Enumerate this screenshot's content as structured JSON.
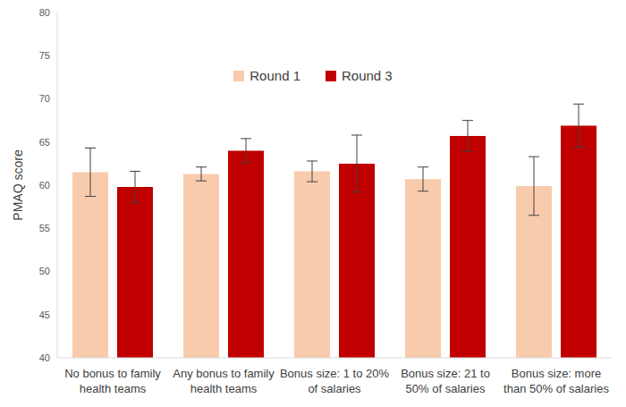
{
  "chart_data": {
    "type": "bar",
    "y_label": "PMAQ score",
    "categories": [
      "No bonus to family health teams",
      "Any bonus to family health teams",
      "Bonus size: 1 to 20% of salaries",
      "Bonus size: 21 to 50% of salaries",
      "Bonus size: more than 50% of salaries"
    ],
    "series": [
      {
        "name": "Round 1",
        "color": "#f8cbad",
        "values": [
          61.5,
          61.3,
          61.6,
          60.7,
          59.9
        ],
        "errors": [
          2.8,
          0.8,
          1.2,
          1.4,
          3.4
        ]
      },
      {
        "name": "Round 3",
        "color": "#c00000",
        "values": [
          59.8,
          64.0,
          62.5,
          65.7,
          66.9
        ],
        "errors": [
          1.8,
          1.4,
          3.3,
          1.8,
          2.5
        ]
      }
    ],
    "ylim": [
      40,
      80
    ],
    "yticks": [
      40,
      45,
      50,
      55,
      60,
      65,
      70,
      75,
      80
    ],
    "grid": false,
    "legend": "top"
  }
}
